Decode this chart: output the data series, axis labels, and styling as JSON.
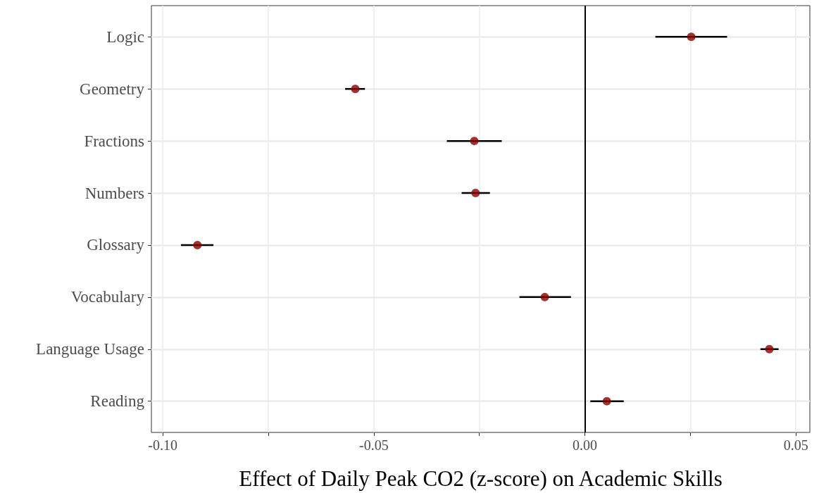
{
  "chart_data": {
    "type": "scatter",
    "orientation": "horizontal",
    "xlabel": "Effect of Daily Peak CO2 (z-score) on Academic Skills",
    "categories": [
      "Logic",
      "Geometry",
      "Fractions",
      "Numbers",
      "Glossary",
      "Vocabulary",
      "Language Usage",
      "Reading"
    ],
    "values": [
      0.0252,
      -0.0544,
      -0.0262,
      -0.0259,
      -0.0918,
      -0.0095,
      0.0437,
      0.0052
    ],
    "errors": [
      [
        0.0167,
        0.0337
      ],
      [
        -0.0568,
        -0.0521
      ],
      [
        -0.0327,
        -0.0197
      ],
      [
        -0.0292,
        -0.0225
      ],
      [
        -0.0957,
        -0.088
      ],
      [
        -0.0155,
        -0.0033
      ],
      [
        0.0416,
        0.0459
      ],
      [
        0.0013,
        0.0092
      ]
    ],
    "color": "#8b0000",
    "marker": "circle",
    "xlim": [
      -0.1027,
      0.0533
    ],
    "xticks": [
      {
        "value": -0.1,
        "label": "-0.10"
      },
      {
        "value": -0.075,
        "label": null
      },
      {
        "value": -0.05,
        "label": "-0.05"
      },
      {
        "value": -0.025,
        "label": null
      },
      {
        "value": 0,
        "label": "0.00"
      },
      {
        "value": 0.025,
        "label": null
      },
      {
        "value": 0.05,
        "label": "0.05"
      }
    ],
    "ref_lines": [
      {
        "axis": "x",
        "value": 0,
        "label": null,
        "color": "#000000"
      }
    ],
    "grid": true
  }
}
